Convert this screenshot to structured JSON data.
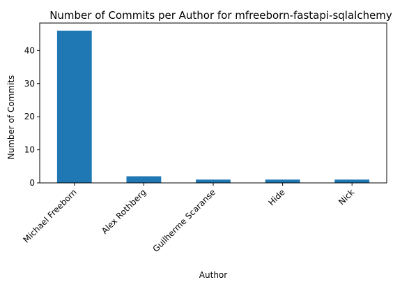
{
  "chart_data": {
    "type": "bar",
    "title": "Number of Commits per Author for mfreeborn-fastapi-sqlalchemy",
    "xlabel": "Author",
    "ylabel": "Number of Commits",
    "categories": [
      "Michael Freeborn",
      "Alex Rothberg",
      "Guilherme Scaranse",
      "Hide",
      "Nick"
    ],
    "values": [
      46,
      2,
      1,
      1,
      1
    ],
    "ylim": [
      0,
      48.3
    ],
    "yticks": [
      0,
      10,
      20,
      30,
      40
    ],
    "bar_color": "#1f77b4",
    "grid": false,
    "legend": "none"
  }
}
